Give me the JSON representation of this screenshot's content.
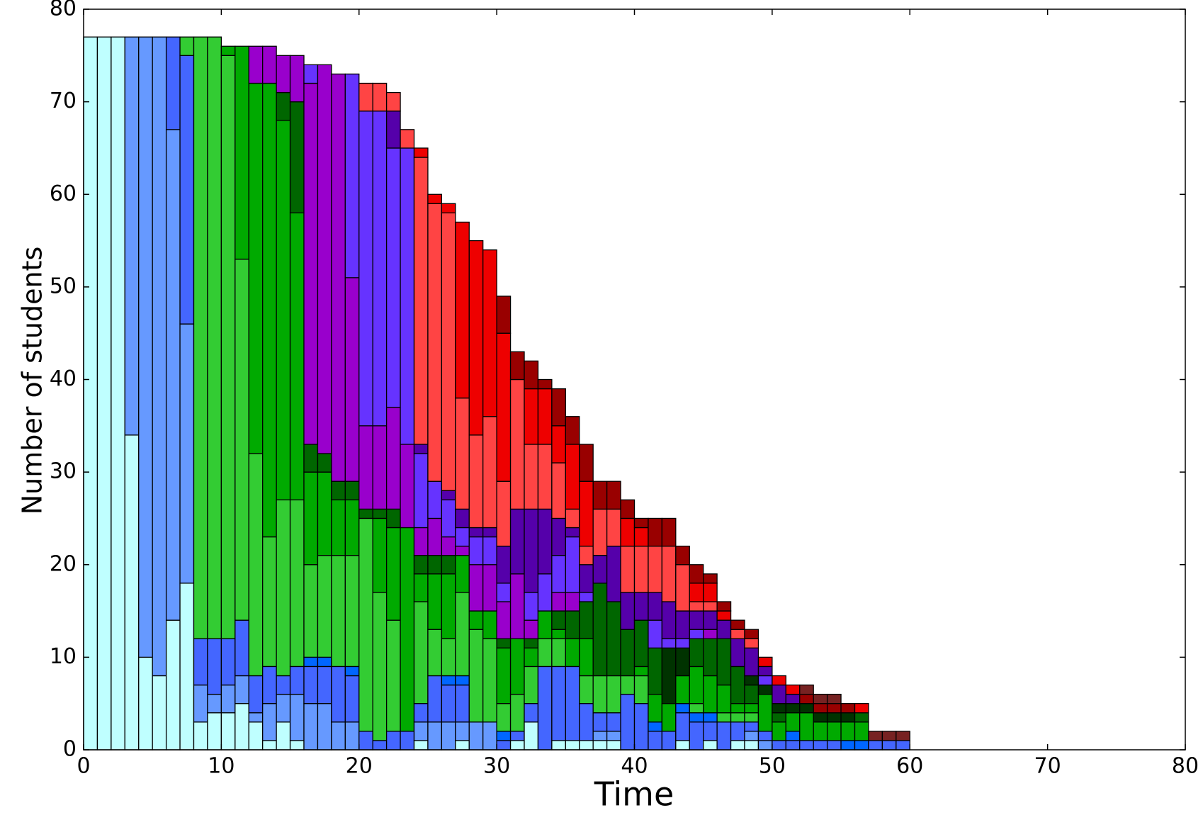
{
  "chart_data": {
    "type": "stacked_bar",
    "x_label": "Time",
    "y_label": "Number of students",
    "xlim": [
      0,
      80
    ],
    "xticks": [
      0,
      10,
      20,
      30,
      40,
      50,
      60,
      70,
      80
    ],
    "ylim": [
      0,
      80
    ],
    "yticks": [
      0,
      10,
      20,
      30,
      40,
      50,
      60,
      70,
      80
    ],
    "x": [
      0,
      1,
      2,
      3,
      4,
      5,
      6,
      7,
      8,
      9,
      10,
      11,
      12,
      13,
      14,
      15,
      16,
      17,
      18,
      19,
      20,
      21,
      22,
      23,
      24,
      25,
      26,
      27,
      28,
      29,
      30,
      31,
      32,
      33,
      34,
      35,
      36,
      37,
      38,
      39,
      40,
      41,
      42,
      43,
      44,
      45,
      46,
      47,
      48,
      49,
      50,
      51,
      52,
      53,
      54,
      55,
      56,
      57,
      58,
      59
    ],
    "series": [
      {
        "color": "#bfffff",
        "values": [
          77,
          77,
          77,
          34,
          10,
          8,
          14,
          18,
          3,
          4,
          4,
          5,
          3,
          1,
          3,
          1,
          0,
          0,
          0,
          0,
          0,
          0,
          0,
          0,
          1,
          0,
          0,
          1,
          0,
          0,
          0,
          1,
          3,
          0,
          1,
          1,
          1,
          1,
          1,
          0,
          0,
          0,
          0,
          1,
          0,
          1,
          0,
          1,
          1,
          0,
          0,
          0,
          0,
          0,
          0,
          0,
          0,
          0,
          0,
          0
        ]
      },
      {
        "color": "#6699ff",
        "values": [
          0,
          0,
          0,
          43,
          67,
          69,
          53,
          28,
          4,
          2,
          3,
          3,
          1,
          4,
          3,
          5,
          5,
          5,
          3,
          3,
          0,
          0,
          0,
          0,
          2,
          3,
          3,
          2,
          3,
          3,
          0,
          0,
          0,
          0,
          0,
          0,
          0,
          1,
          1,
          0,
          0,
          0,
          0,
          0,
          0,
          0,
          0,
          0,
          1,
          1,
          0,
          0,
          0,
          0,
          0,
          0,
          0,
          0,
          0,
          0
        ]
      },
      {
        "color": "#4466ff",
        "values": [
          0,
          0,
          0,
          0,
          0,
          0,
          10,
          29,
          5,
          6,
          5,
          6,
          4,
          4,
          2,
          3,
          4,
          4,
          6,
          5,
          2,
          1,
          2,
          2,
          2,
          5,
          4,
          4,
          0,
          0,
          1,
          1,
          2,
          9,
          8,
          8,
          4,
          2,
          2,
          6,
          5,
          2,
          2,
          3,
          3,
          2,
          3,
          2,
          1,
          1,
          1,
          1,
          1,
          1,
          1,
          0,
          0,
          1,
          1,
          1
        ]
      },
      {
        "color": "#0066ff",
        "values": [
          0,
          0,
          0,
          0,
          0,
          0,
          0,
          0,
          0,
          0,
          0,
          0,
          0,
          0,
          0,
          0,
          1,
          1,
          0,
          1,
          0,
          0,
          0,
          0,
          0,
          0,
          1,
          1,
          0,
          0,
          1,
          0,
          0,
          0,
          0,
          0,
          0,
          0,
          0,
          0,
          0,
          1,
          0,
          1,
          1,
          1,
          0,
          0,
          0,
          0,
          0,
          1,
          0,
          0,
          0,
          1,
          1,
          0,
          0,
          0
        ]
      },
      {
        "color": "#33cc33",
        "values": [
          0,
          0,
          0,
          0,
          0,
          0,
          0,
          2,
          65,
          65,
          63,
          39,
          24,
          14,
          19,
          18,
          10,
          11,
          12,
          12,
          23,
          16,
          12,
          0,
          11,
          5,
          4,
          9,
          10,
          9,
          3,
          4,
          4,
          3,
          3,
          0,
          3,
          4,
          4,
          2,
          3,
          0,
          0,
          0,
          1,
          0,
          1,
          1,
          1,
          0,
          0,
          0,
          0,
          0,
          0,
          0,
          0,
          0,
          0,
          0
        ]
      },
      {
        "color": "#00aa00",
        "values": [
          0,
          0,
          0,
          0,
          0,
          0,
          0,
          0,
          0,
          0,
          1,
          23,
          40,
          49,
          41,
          31,
          10,
          9,
          6,
          6,
          0,
          8,
          10,
          22,
          3,
          6,
          7,
          4,
          2,
          3,
          6,
          6,
          2,
          3,
          1,
          3,
          4,
          0,
          0,
          0,
          1,
          3,
          3,
          3,
          4,
          4,
          3,
          1,
          1,
          4,
          2,
          2,
          3,
          2,
          2,
          2,
          2,
          0,
          0,
          0
        ]
      },
      {
        "color": "#006600",
        "values": [
          0,
          0,
          0,
          0,
          0,
          0,
          0,
          0,
          0,
          0,
          0,
          0,
          0,
          0,
          3,
          12,
          3,
          2,
          2,
          2,
          1,
          1,
          2,
          0,
          2,
          2,
          2,
          0,
          0,
          0,
          1,
          0,
          1,
          0,
          2,
          3,
          4,
          10,
          8,
          5,
          5,
          5,
          0,
          0,
          3,
          4,
          5,
          4,
          2,
          0,
          1,
          0,
          0,
          0,
          0,
          0,
          1,
          0,
          0,
          0
        ]
      },
      {
        "color": "#003300",
        "values": [
          0,
          0,
          0,
          0,
          0,
          0,
          0,
          0,
          0,
          0,
          0,
          0,
          0,
          0,
          0,
          0,
          0,
          0,
          0,
          0,
          0,
          0,
          0,
          0,
          0,
          0,
          0,
          0,
          0,
          0,
          0,
          0,
          0,
          0,
          0,
          0,
          0,
          0,
          0,
          0,
          0,
          0,
          6,
          3,
          0,
          0,
          0,
          0,
          1,
          1,
          1,
          1,
          1,
          1,
          1,
          1,
          0,
          0,
          0,
          0
        ]
      },
      {
        "color": "#9900cc",
        "values": [
          0,
          0,
          0,
          0,
          0,
          0,
          0,
          0,
          0,
          0,
          0,
          0,
          4,
          4,
          4,
          5,
          39,
          42,
          44,
          22,
          9,
          9,
          11,
          9,
          3,
          4,
          2,
          1,
          5,
          5,
          4,
          7,
          2,
          0,
          2,
          2,
          0,
          0,
          0,
          0,
          0,
          0,
          0,
          0,
          0,
          1,
          0,
          0,
          0,
          0,
          0,
          0,
          0,
          0,
          0,
          0,
          0,
          0,
          0,
          0
        ]
      },
      {
        "color": "#6633ff",
        "values": [
          0,
          0,
          0,
          0,
          0,
          0,
          0,
          0,
          0,
          0,
          0,
          0,
          0,
          0,
          0,
          0,
          2,
          0,
          0,
          22,
          34,
          34,
          28,
          32,
          8,
          4,
          4,
          2,
          3,
          3,
          2,
          0,
          3,
          4,
          4,
          6,
          1,
          0,
          0,
          0,
          0,
          3,
          1,
          1,
          1,
          0,
          0,
          0,
          0,
          1,
          0,
          0,
          0,
          0,
          0,
          0,
          0,
          0,
          0,
          0
        ]
      },
      {
        "color": "#5500aa",
        "values": [
          0,
          0,
          0,
          0,
          0,
          0,
          0,
          0,
          0,
          0,
          0,
          0,
          0,
          0,
          0,
          0,
          0,
          0,
          0,
          0,
          0,
          0,
          4,
          0,
          1,
          0,
          1,
          2,
          1,
          1,
          4,
          7,
          9,
          7,
          4,
          1,
          3,
          3,
          6,
          4,
          3,
          3,
          4,
          3,
          2,
          2,
          2,
          3,
          3,
          1,
          2,
          1,
          0,
          0,
          0,
          0,
          0,
          0,
          0,
          0
        ]
      },
      {
        "color": "#ff4444",
        "values": [
          0,
          0,
          0,
          0,
          0,
          0,
          0,
          0,
          0,
          0,
          0,
          0,
          0,
          0,
          0,
          0,
          0,
          0,
          0,
          0,
          3,
          3,
          2,
          2,
          31,
          30,
          30,
          12,
          10,
          12,
          7,
          14,
          7,
          7,
          6,
          2,
          2,
          5,
          4,
          5,
          5,
          5,
          6,
          5,
          1,
          1,
          0,
          1,
          1,
          0,
          0,
          0,
          0,
          0,
          0,
          0,
          0,
          0,
          0,
          0
        ]
      },
      {
        "color": "#ee0000",
        "values": [
          0,
          0,
          0,
          0,
          0,
          0,
          0,
          0,
          0,
          0,
          0,
          0,
          0,
          0,
          0,
          0,
          0,
          0,
          0,
          0,
          0,
          0,
          0,
          0,
          1,
          1,
          1,
          19,
          21,
          18,
          16,
          0,
          6,
          6,
          4,
          7,
          7,
          0,
          0,
          3,
          2,
          0,
          0,
          0,
          2,
          2,
          1,
          0,
          0,
          1,
          1,
          1,
          0,
          0,
          0,
          0,
          1,
          0,
          0,
          0
        ]
      },
      {
        "color": "#990000",
        "values": [
          0,
          0,
          0,
          0,
          0,
          0,
          0,
          0,
          0,
          0,
          0,
          0,
          0,
          0,
          0,
          0,
          0,
          0,
          0,
          0,
          0,
          0,
          0,
          0,
          0,
          0,
          0,
          0,
          0,
          0,
          4,
          3,
          3,
          1,
          4,
          3,
          4,
          3,
          3,
          2,
          1,
          3,
          3,
          2,
          2,
          1,
          1,
          1,
          1,
          0,
          0,
          0,
          1,
          1,
          1,
          1,
          0,
          0,
          0,
          0
        ]
      },
      {
        "color": "#772222",
        "values": [
          0,
          0,
          0,
          0,
          0,
          0,
          0,
          0,
          0,
          0,
          0,
          0,
          0,
          0,
          0,
          0,
          0,
          0,
          0,
          0,
          0,
          0,
          0,
          0,
          0,
          0,
          0,
          0,
          0,
          0,
          0,
          0,
          0,
          0,
          0,
          0,
          0,
          0,
          0,
          0,
          0,
          0,
          0,
          0,
          0,
          0,
          0,
          0,
          0,
          0,
          0,
          0,
          1,
          1,
          1,
          0,
          0,
          1,
          1,
          1
        ]
      }
    ]
  }
}
